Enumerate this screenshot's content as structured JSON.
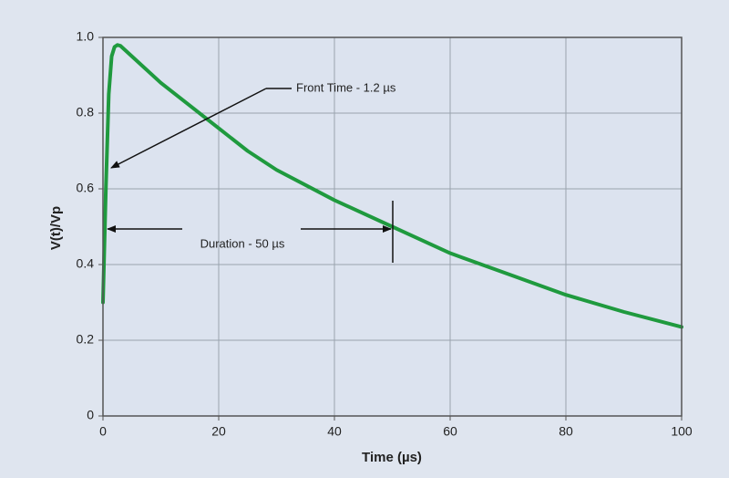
{
  "chart_data": {
    "type": "line",
    "x_label": "Time (µs)",
    "y_label": "V(t)/Vp",
    "x": [
      0,
      0.5,
      1,
      1.5,
      2,
      2.5,
      3,
      5,
      10,
      15,
      20,
      25,
      30,
      40,
      50,
      60,
      70,
      80,
      90,
      100
    ],
    "series": [
      {
        "color": "#1f9a3e",
        "values": [
          0.3,
          0.6,
          0.85,
          0.95,
          0.975,
          0.98,
          0.978,
          0.95,
          0.88,
          0.82,
          0.76,
          0.7,
          0.65,
          0.57,
          0.5,
          0.43,
          0.375,
          0.32,
          0.275,
          0.235
        ]
      }
    ],
    "xlim": [
      0,
      100
    ],
    "xticks": [
      0,
      20,
      40,
      60,
      80,
      100
    ],
    "ylim": [
      0,
      1
    ],
    "yticks": [
      0,
      0.2,
      0.4,
      0.6,
      0.8,
      {
        "value": 1,
        "label": "1.0"
      }
    ],
    "grid": true,
    "annotations": [
      "Front Time - 1.2 µs",
      "Duration - 50 µs"
    ]
  }
}
